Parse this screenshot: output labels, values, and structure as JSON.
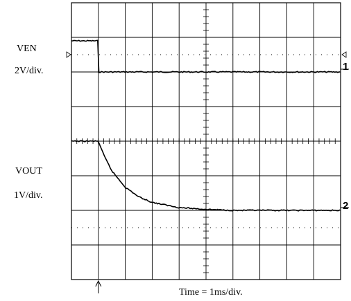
{
  "chart_data": {
    "type": "line",
    "title": "",
    "grid": true,
    "divisions": {
      "x": 10,
      "y": 8
    },
    "x_scale_label": "Time = 1ms/div.",
    "x_unit": "ms",
    "xlim": [
      0,
      10
    ],
    "series": [
      {
        "name": "VEN",
        "scale_label": "2V/div.",
        "marker": "1",
        "values_in_divisions_above_marker": [
          [
            0,
            0.9
          ],
          [
            0.99,
            0.9
          ],
          [
            1.0,
            0.0
          ],
          [
            10.0,
            0.0
          ]
        ]
      },
      {
        "name": "VOUT",
        "scale_label": "1V/div.",
        "marker": "2",
        "values_in_divisions_above_marker": [
          [
            0,
            2.0
          ],
          [
            1.0,
            2.0
          ],
          [
            1.2,
            1.6
          ],
          [
            1.5,
            1.14
          ],
          [
            2.0,
            0.67
          ],
          [
            2.5,
            0.39
          ],
          [
            3.0,
            0.23
          ],
          [
            4.0,
            0.08
          ],
          [
            5.0,
            0.03
          ],
          [
            6.0,
            0.0
          ],
          [
            10.0,
            0.0
          ]
        ]
      }
    ]
  },
  "labels": {
    "ch1_name": "VEN",
    "ch1_scale": "2V/div.",
    "ch2_name": "VOUT",
    "ch2_scale": "1V/div.",
    "ch1_marker": "1",
    "ch2_marker": "2",
    "time_label": "Time = 1ms/div."
  }
}
